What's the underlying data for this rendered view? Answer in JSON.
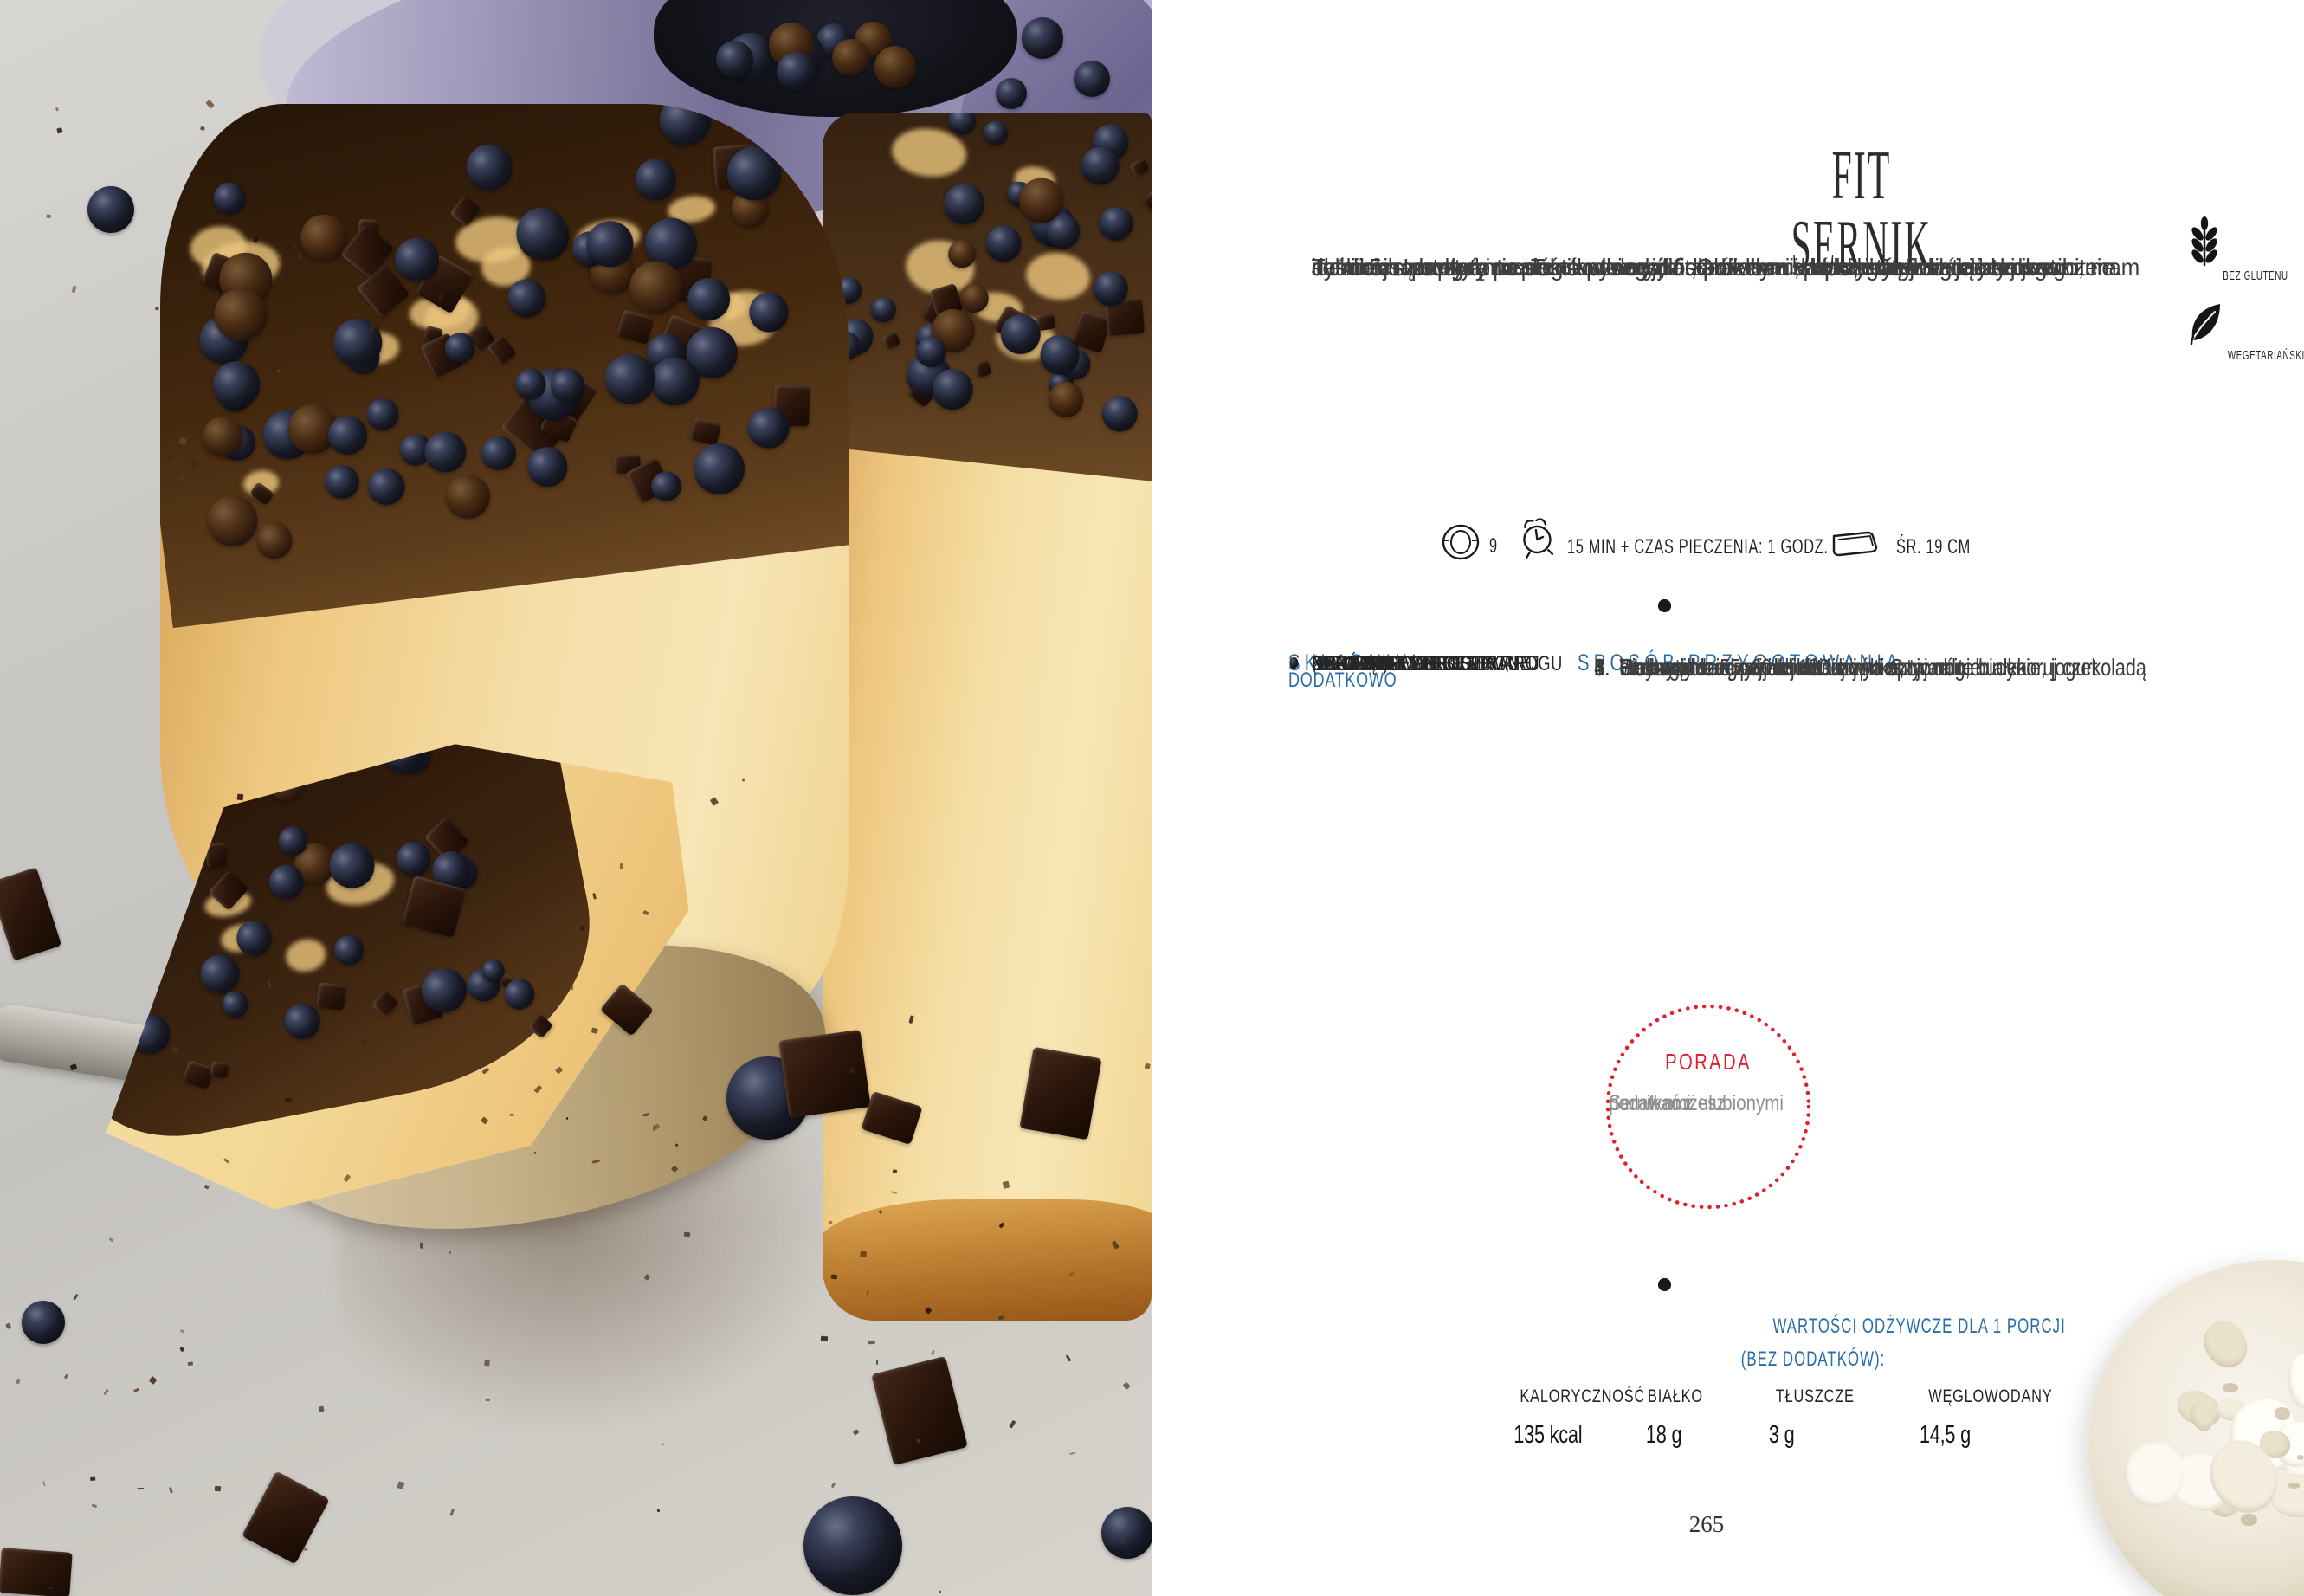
{
  "page": {
    "title": "FIT SERNIK",
    "intro_lines": [
      "Jeśli masz ochotę na coś słodkiego, a zarazem niskokalorycznego i zdrowego, mam",
      "dla ciebie prosty przepis na pyszny fit sernik bez spodu, który od dawna jest hitem",
      "na moim Instagramie. To ciasto wyjdzie każdemu, a przygotujesz je błyskawicznie.",
      "Tylko 5 bazowych produktów i dodatki. Głównymi składnikami dietetycznego",
      "sernika są budyń i twaróg – cenne źródła białka i wapnia. Jeśli wciąż szukasz",
      "idealnej receptury na sernik w wersji fit, polecam dać szansę właśnie tej."
    ],
    "badges": [
      {
        "icon": "wheat-icon",
        "label": "BEZ GLUTENU"
      },
      {
        "icon": "leaf-icon",
        "label": "WEGETARIAŃSKIE"
      }
    ],
    "meta": {
      "servings": "9",
      "time": "15 MIN + CZAS PIECZENIA: 1 GODZ.",
      "pan": "ŚR. 19 CM"
    },
    "ingredients": {
      "header": "SKŁADNIKI",
      "items": [
        {
          "lines": [
            "5 JAJEK"
          ]
        },
        {
          "lines": [
            "500 G ZMIELONEGO TWAROGU"
          ]
        },
        {
          "lines": [
            "2 BUDYNIE W PROSZKU,",
            "NP. WANILIOWE BEZ CUKRU",
            "(2 × 35 G)"
          ]
        },
        {
          "lines": [
            "50 G GĘSTEGO JOGURTU",
            "NATURALNEGO"
          ]
        },
        {
          "lines": [
            "50 G ERYTRYTOLU"
          ]
        }
      ]
    },
    "extras": {
      "header": "DODATKOWO",
      "items": [
        {
          "lines": [
            "BORÓWKI"
          ]
        },
        {
          "lines": [
            "KILKA KOSTEK POSIEKANEJ",
            "GORZKIEJ CZEKOLADY"
          ]
        }
      ]
    },
    "method": {
      "header": "SPOSÓB PRZYGOTOWANIA",
      "steps": [
        {
          "num": "1.",
          "lines": [
            "Piekarnik rozgrzej do 180 stopni C."
          ]
        },
        {
          "num": "2.",
          "lines": [
            "Białka oddziel od żółtek i ubij na sztywno."
          ]
        },
        {
          "num": "3.",
          "lines": [
            "W drugim naczyniu zmiksuj żółtka, twaróg, budynie, jogurt",
            "i erytrytol."
          ]
        },
        {
          "num": "4.",
          "lines": [
            "Do masy serowej delikatnie wmieszaj ubite białka."
          ]
        },
        {
          "num": "5.",
          "lines": [
            "Gotową masę przelej do formy i opcjonalnie udekoruj czekoladą",
            "oraz owocami."
          ]
        },
        {
          "num": "6.",
          "lines": [
            "Piecz około 55–60 minut."
          ]
        }
      ]
    },
    "tip": {
      "header": "PORADA",
      "lines": [
        "Sernik możesz",
        "podawać z ulubionymi",
        "dodatkami."
      ]
    },
    "nutrition": {
      "header_line1": "WARTOŚCI ODŻYWCZE DLA 1 PORCJI",
      "header_line2": "(BEZ DODATKÓW):",
      "columns": [
        {
          "label": "KALORYCZNOŚĆ",
          "value": "135 kcal"
        },
        {
          "label": "BIAŁKO",
          "value": "18 g"
        },
        {
          "label": "TŁUSZCZE",
          "value": "3 g"
        },
        {
          "label": "WĘGLOWODANY",
          "value": "14,5 g"
        }
      ]
    },
    "page_number": "265"
  },
  "colors": {
    "accent_blue": "#2a6da4",
    "accent_red": "#e11f2f",
    "text_dark": "#3e3e3e",
    "text_gray": "#8f8f8f"
  }
}
